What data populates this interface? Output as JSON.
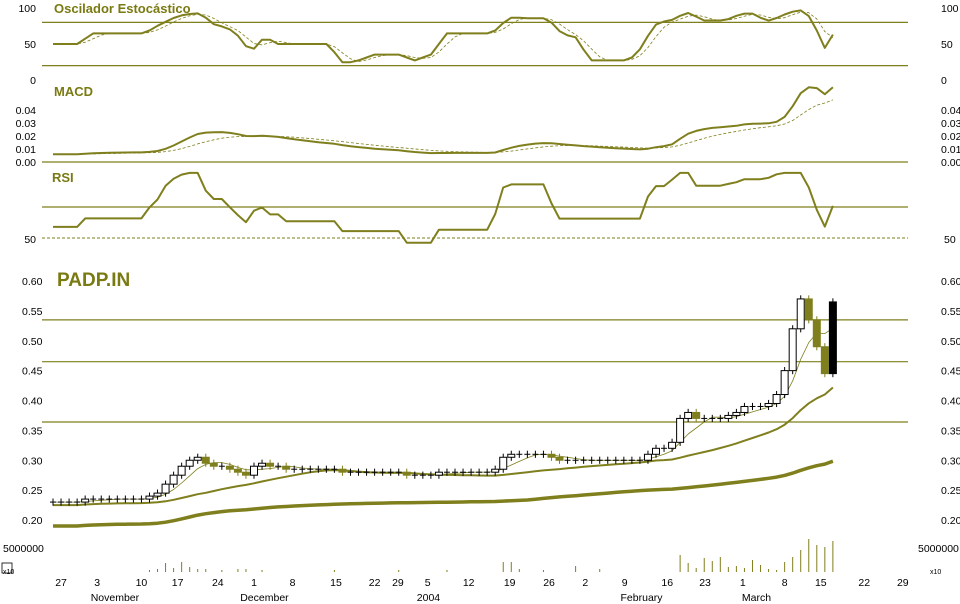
{
  "chart_data": {
    "type": "candlestick",
    "symbol": "PADP.IN",
    "colors": {
      "accent": "#7f7f1e",
      "down_fill": "#7f7f1e",
      "up_fill": "#ffffff",
      "last": "#000000"
    },
    "closes": [
      0.23,
      0.23,
      0.23,
      0.23,
      0.235,
      0.235,
      0.235,
      0.235,
      0.235,
      0.235,
      0.235,
      0.235,
      0.24,
      0.245,
      0.26,
      0.275,
      0.29,
      0.3,
      0.305,
      0.295,
      0.29,
      0.29,
      0.285,
      0.28,
      0.275,
      0.29,
      0.295,
      0.29,
      0.29,
      0.285,
      0.285,
      0.285,
      0.285,
      0.285,
      0.285,
      0.285,
      0.28,
      0.28,
      0.28,
      0.28,
      0.28,
      0.28,
      0.28,
      0.28,
      0.275,
      0.275,
      0.275,
      0.275,
      0.28,
      0.28,
      0.28,
      0.28,
      0.28,
      0.28,
      0.28,
      0.285,
      0.305,
      0.31,
      0.31,
      0.31,
      0.31,
      0.31,
      0.305,
      0.3,
      0.3,
      0.3,
      0.3,
      0.3,
      0.3,
      0.3,
      0.3,
      0.3,
      0.3,
      0.3,
      0.31,
      0.32,
      0.32,
      0.33,
      0.37,
      0.38,
      0.37,
      0.37,
      0.37,
      0.37,
      0.375,
      0.38,
      0.39,
      0.39,
      0.39,
      0.395,
      0.41,
      0.45,
      0.52,
      0.57,
      0.535,
      0.49,
      0.445,
      0.565
    ],
    "volumes": [
      0,
      0,
      0,
      0,
      0,
      0,
      0,
      0,
      0,
      0,
      0,
      0,
      0.2,
      0.3,
      0.9,
      0.4,
      1.0,
      0.5,
      0.3,
      0.3,
      0,
      0.2,
      0,
      0.3,
      0.3,
      0,
      0.2,
      0,
      0,
      0,
      0,
      0,
      0,
      0,
      0,
      0.2,
      0,
      0,
      0,
      0,
      0,
      0,
      0,
      0.2,
      0,
      0,
      0,
      0,
      0,
      0.2,
      0,
      0,
      0,
      0,
      0,
      0,
      1.0,
      1.0,
      0.3,
      0,
      0,
      0.2,
      0,
      0,
      0,
      0.6,
      0,
      0,
      0.3,
      0,
      0,
      0,
      0,
      0,
      0,
      0,
      0,
      0,
      1.7,
      0.9,
      0.4,
      1.4,
      1.1,
      1.5,
      0.5,
      0.6,
      0.4,
      1.2,
      0.7,
      0.3,
      0.2,
      1.0,
      1.5,
      2.2,
      3.3,
      2.7,
      2.5,
      3.1
    ],
    "price_axis": {
      "ylim": [
        0.2,
        0.6
      ],
      "ticks": [
        "0.60",
        "0.55",
        "0.50",
        "0.45",
        "0.40",
        "0.35",
        "0.30",
        "0.25",
        "0.20"
      ]
    },
    "reference_lines": [
      0.535,
      0.465,
      0.364
    ],
    "moving_averages": [
      5,
      20,
      60
    ],
    "volume_axis": {
      "label": "5000000",
      "multiplier": "x10"
    },
    "panels": {
      "stochastic": {
        "title": "Oscilador Estocástico",
        "ticks": [
          "100",
          "50",
          "0"
        ],
        "levels": [
          80,
          20
        ]
      },
      "macd": {
        "title": "MACD",
        "ticks": [
          "0.04",
          "0.03",
          "0.02",
          "0.01",
          "0.00"
        ]
      },
      "rsi": {
        "title": "RSI",
        "ticks": [
          "50"
        ],
        "levels": [
          70,
          50
        ]
      }
    },
    "x_ticks": [
      {
        "label": "27",
        "index": 1
      },
      {
        "label": "3",
        "index": 5.5
      },
      {
        "label": "10",
        "index": 11
      },
      {
        "label": "17",
        "index": 15.5
      },
      {
        "label": "24",
        "index": 20.5
      },
      {
        "label": "1",
        "index": 25
      },
      {
        "label": "8",
        "index": 29.8
      },
      {
        "label": "15",
        "index": 35.2
      },
      {
        "label": "22",
        "index": 40
      },
      {
        "label": "29",
        "index": 42.9
      },
      {
        "label": "5",
        "index": 46.6
      },
      {
        "label": "12",
        "index": 51.7
      },
      {
        "label": "19",
        "index": 56.8
      },
      {
        "label": "26",
        "index": 61.7
      },
      {
        "label": "2",
        "index": 66.2
      },
      {
        "label": "9",
        "index": 71.1
      },
      {
        "label": "16",
        "index": 76.4
      },
      {
        "label": "23",
        "index": 81.1
      },
      {
        "label": "1",
        "index": 85.8
      },
      {
        "label": "8",
        "index": 91
      },
      {
        "label": "15",
        "index": 95.5
      },
      {
        "label": "22",
        "index": 100.9
      },
      {
        "label": "29",
        "index": 105.7
      }
    ],
    "month_labels": [
      {
        "label": "November",
        "index": 7.7
      },
      {
        "label": "December",
        "index": 26.3
      },
      {
        "label": "2004",
        "index": 46.7
      },
      {
        "label": "February",
        "index": 73.2
      },
      {
        "label": "March",
        "index": 87.5
      }
    ]
  }
}
